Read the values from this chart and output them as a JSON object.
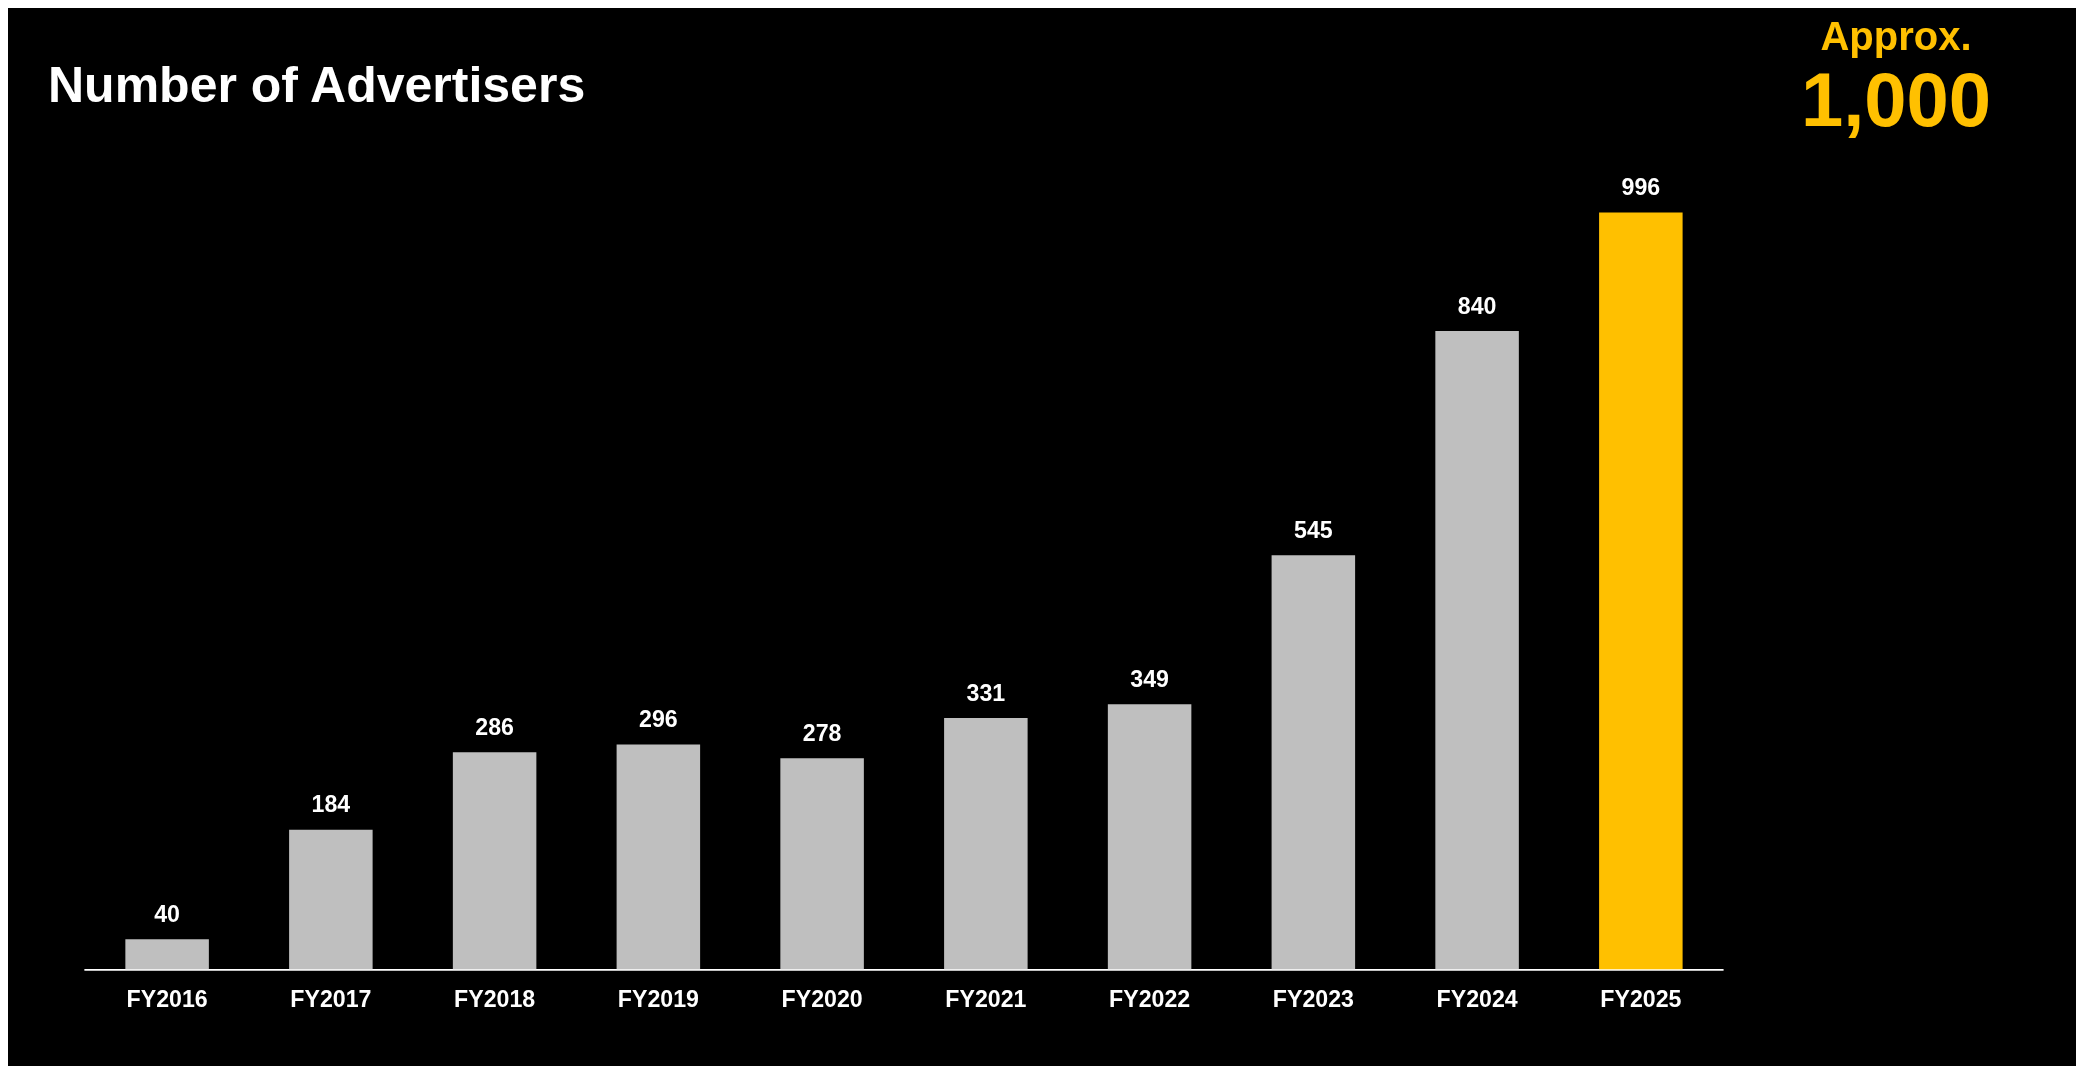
{
  "chart_data": {
    "type": "bar",
    "title": "Number of Advertisers",
    "categories": [
      "FY2016",
      "FY2017",
      "FY2018",
      "FY2019",
      "FY2020",
      "FY2021",
      "FY2022",
      "FY2023",
      "FY2024",
      "FY2025"
    ],
    "values": [
      40,
      184,
      286,
      296,
      278,
      331,
      349,
      545,
      840,
      996
    ],
    "colors": [
      "#bfbfbf",
      "#bfbfbf",
      "#bfbfbf",
      "#bfbfbf",
      "#bfbfbf",
      "#bfbfbf",
      "#bfbfbf",
      "#bfbfbf",
      "#bfbfbf",
      "#ffc000"
    ],
    "data_labels": true,
    "legend": false,
    "annotations": [
      "Approx.",
      "1,000"
    ]
  }
}
